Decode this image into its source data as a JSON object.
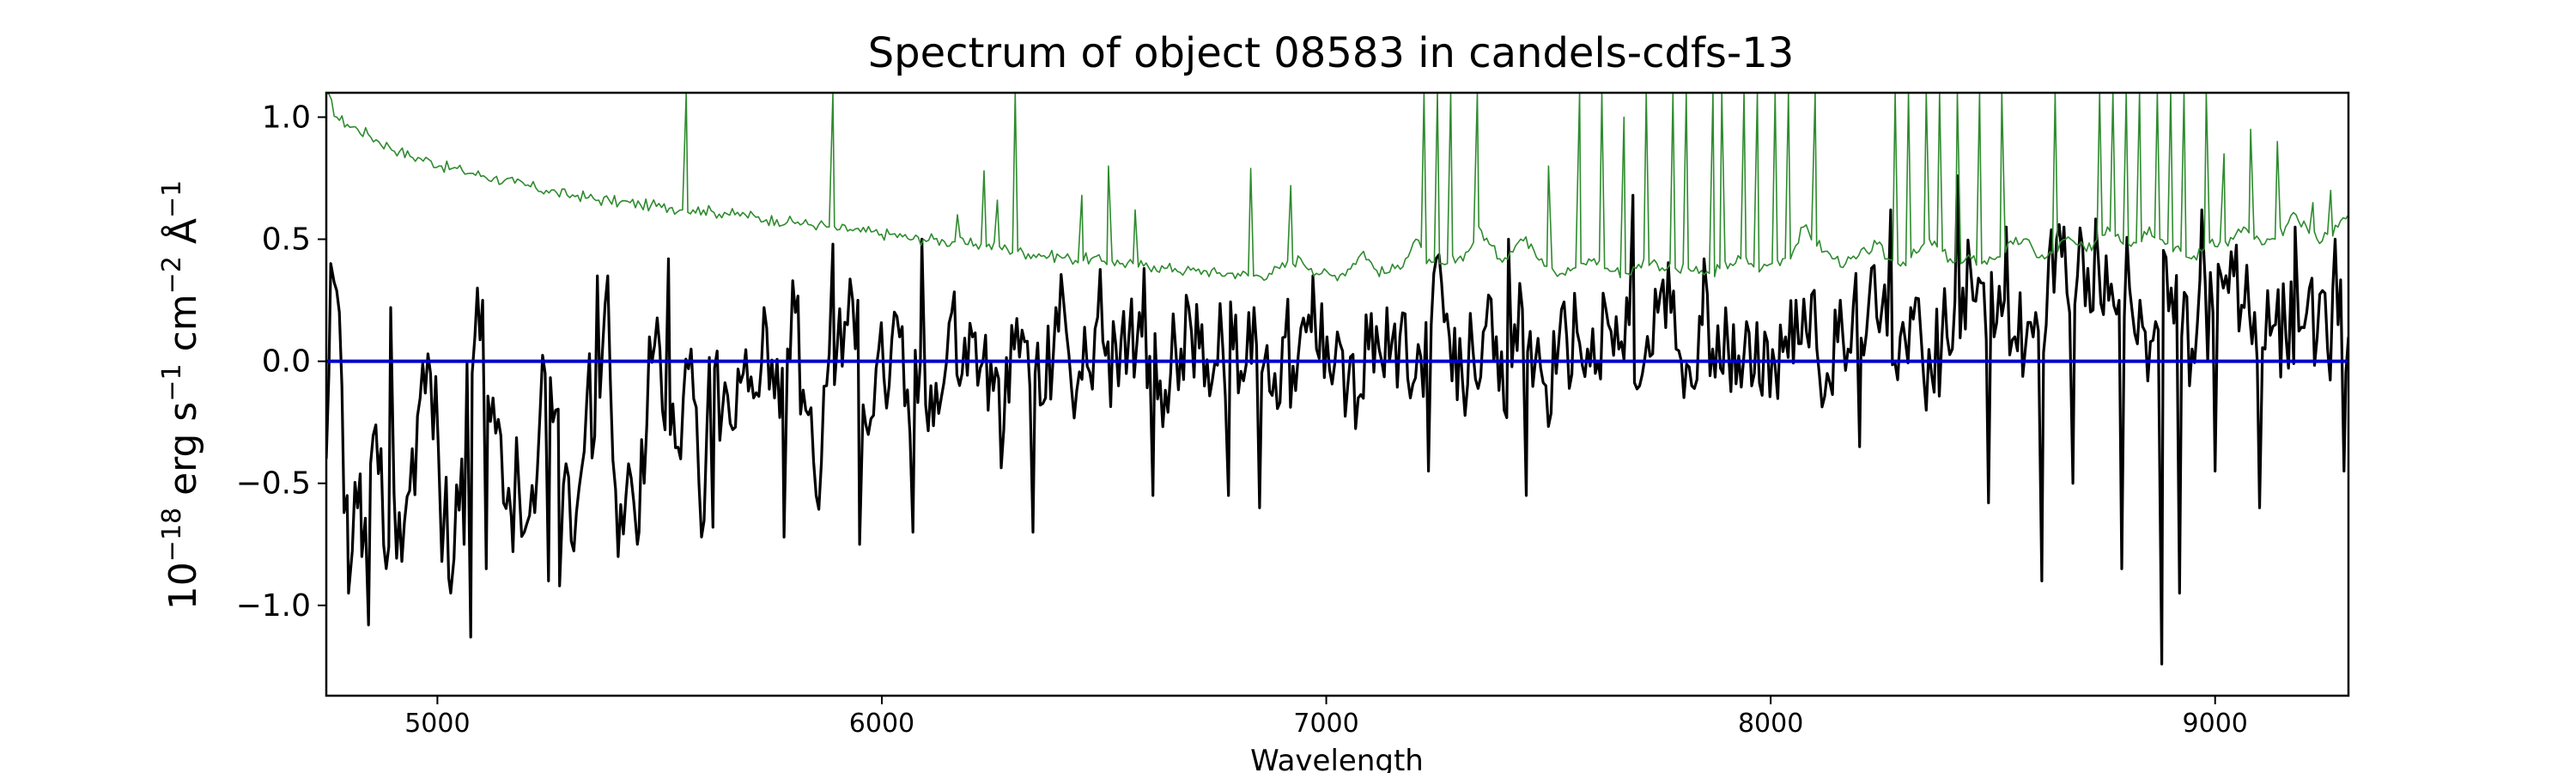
{
  "chart_data": {
    "type": "line",
    "title": "Spectrum of object 08583 in candels-cdfs-13",
    "xlabel": "Wavelength",
    "ylabel_parts": {
      "base": "10",
      "exp": "−18",
      "erg": " erg s",
      "s_exp": "−1",
      "cm": " cm",
      "cm_exp": "−2",
      "ang": " Å",
      "ang_exp": "−1"
    },
    "xlim": [
      4750,
      9300
    ],
    "ylim": [
      -1.37,
      1.1
    ],
    "xticks": [
      5000,
      6000,
      7000,
      8000,
      9000
    ],
    "yticks": [
      -1.0,
      -0.5,
      0.0,
      0.5,
      1.0
    ],
    "ytick_labels": [
      "−1.0",
      "−0.5",
      "0.0",
      "0.5",
      "1.0"
    ],
    "grid": false,
    "colors": {
      "flux": "#000000",
      "error": "#2e8b2e",
      "zero": "#0000cc"
    },
    "series": [
      {
        "role": "flux",
        "x_start": 4750,
        "x_end": 9300,
        "y": [
          -0.4,
          0.29,
          -0.55,
          -0.6,
          -0.55,
          -0.46,
          -0.76,
          -0.62,
          -0.53,
          -0.15,
          -0.05,
          -0.44,
          -0.85,
          -0.4,
          -0.05,
          0.25,
          -0.15,
          -0.58,
          -0.45,
          -0.7,
          -0.62,
          -0.05,
          -0.2,
          -0.42,
          -0.62,
          -0.15,
          -0.25,
          0.35,
          -0.8,
          -0.42,
          -0.7,
          0.1,
          0.05,
          -0.3,
          -0.4,
          0.05,
          -0.72,
          0.0,
          -0.2,
          -0.28,
          -0.05,
          -0.15,
          0.22,
          -0.15,
          0.08,
          0.2,
          -0.2,
          -0.55,
          -0.1,
          0.05,
          0.15,
          0.25,
          -0.3,
          0.05,
          -0.1,
          0.1,
          -0.3,
          0.0,
          -0.1,
          -0.15,
          0.2,
          -0.05,
          0.1,
          0.0,
          -0.12,
          -0.28,
          0.05,
          0.08,
          -0.05,
          -0.15,
          0.22,
          0.12,
          -0.12,
          -0.02,
          0.18,
          0.08,
          -0.1,
          0.1,
          0.2,
          0.02,
          -0.08,
          -0.05,
          0.05,
          0.12,
          0.15,
          -0.08,
          0.06,
          0.05,
          -0.08,
          0.22,
          0.0,
          -0.05,
          0.1,
          -0.12,
          0.12,
          0.05,
          0.1,
          0.12,
          -0.1,
          -0.15,
          0.05,
          0.05,
          0.0,
          0.1,
          -0.15,
          0.02,
          0.15,
          0.32,
          -0.08,
          -0.08,
          0.05,
          0.12,
          0.0,
          -0.2,
          0.15,
          0.18,
          0.0,
          -0.1,
          -0.05,
          0.1,
          0.12,
          0.05,
          0.0,
          0.15,
          0.05,
          0.15,
          -0.1,
          0.02,
          0.28,
          0.2,
          0.0,
          -0.1,
          0.15,
          0.05,
          -0.05,
          0.15,
          0.02,
          -0.05,
          0.12,
          -0.02,
          0.1,
          0.25,
          0.12,
          0.05,
          -0.05,
          0.08,
          0.05,
          0.2,
          0.25,
          0.12,
          0.18,
          0.1,
          0.22,
          0.1,
          -0.05,
          0.1,
          0.05,
          0.3,
          0.25,
          0.32,
          0.1,
          0.25,
          0.1,
          0.05,
          0.2,
          0.15,
          0.5,
          0.28,
          0.35,
          0.38,
          0.42,
          0.25,
          0.25,
          0.3,
          0.25,
          0.08,
          0.25,
          0.3,
          0.1,
          0.05,
          0.25,
          0.2,
          0.3,
          0.35,
          0.22,
          0.2,
          0.05,
          0.15,
          0.1,
          0.2,
          0.2,
          0.1,
          0.05,
          0.15,
          0.1
        ],
        "y_low_spikes": [
          [
            4790,
            -0.62
          ],
          [
            4800,
            -0.95
          ],
          [
            4830,
            -0.8
          ],
          [
            4845,
            -1.08
          ],
          [
            4920,
            -0.82
          ],
          [
            5010,
            -0.82
          ],
          [
            5030,
            -0.95
          ],
          [
            5060,
            -0.75
          ],
          [
            5075,
            -1.13
          ],
          [
            5110,
            -0.85
          ],
          [
            5170,
            -0.78
          ],
          [
            5250,
            -0.9
          ],
          [
            5275,
            -0.92
          ],
          [
            5450,
            -0.75
          ],
          [
            5620,
            -0.68
          ],
          [
            5780,
            -0.72
          ],
          [
            5950,
            -0.75
          ],
          [
            6070,
            -0.7
          ],
          [
            6340,
            -0.7
          ],
          [
            6610,
            -0.55
          ],
          [
            6780,
            -0.55
          ],
          [
            6850,
            -0.6
          ],
          [
            7230,
            -0.45
          ],
          [
            7450,
            -0.55
          ],
          [
            7850,
            -0.67
          ],
          [
            8200,
            -0.35
          ],
          [
            8350,
            -0.2
          ],
          [
            8490,
            -0.58
          ],
          [
            8610,
            -0.9
          ],
          [
            8680,
            -0.5
          ],
          [
            8790,
            -0.85
          ],
          [
            8880,
            -1.24
          ],
          [
            8920,
            -0.95
          ],
          [
            9000,
            -0.45
          ],
          [
            9100,
            -0.6
          ],
          [
            9290,
            -0.45
          ]
        ],
        "y_high_spikes": [
          [
            4760,
            0.4
          ],
          [
            4895,
            0.22
          ],
          [
            5360,
            0.35
          ],
          [
            5520,
            0.42
          ],
          [
            5890,
            0.48
          ],
          [
            6090,
            0.5
          ],
          [
            6590,
            0.38
          ],
          [
            6970,
            0.35
          ],
          [
            7410,
            0.5
          ],
          [
            7690,
            0.68
          ],
          [
            7850,
            0.42
          ],
          [
            8270,
            0.62
          ],
          [
            8420,
            0.76
          ],
          [
            8530,
            0.55
          ],
          [
            8660,
            0.55
          ],
          [
            8970,
            0.62
          ],
          [
            9180,
            0.55
          ],
          [
            9270,
            0.5
          ]
        ]
      },
      {
        "role": "error",
        "x_start": 4750,
        "x_end": 9300,
        "y": [
          1.1,
          1.0,
          0.97,
          0.95,
          0.93,
          0.9,
          0.88,
          0.86,
          0.84,
          0.83,
          0.82,
          0.8,
          0.79,
          0.78,
          0.77,
          0.76,
          0.75,
          0.74,
          0.73,
          0.72,
          0.71,
          0.7,
          0.69,
          0.68,
          0.68,
          0.67,
          0.66,
          0.66,
          0.65,
          0.65,
          0.64,
          0.64,
          0.63,
          0.63,
          0.62,
          0.62,
          0.62,
          0.61,
          0.61,
          0.6,
          0.6,
          0.59,
          0.58,
          0.58,
          0.57,
          0.57,
          0.56,
          0.56,
          0.55,
          0.54,
          0.54,
          0.53,
          0.53,
          0.52,
          0.52,
          0.51,
          0.5,
          0.5,
          0.5,
          0.49,
          0.49,
          0.48,
          0.48,
          0.47,
          0.47,
          0.46,
          0.45,
          0.44,
          0.44,
          0.43,
          0.43,
          0.42,
          0.42,
          0.42,
          0.41,
          0.41,
          0.4,
          0.4,
          0.39,
          0.39,
          0.38,
          0.38,
          0.37,
          0.37,
          0.37,
          0.36,
          0.36,
          0.36,
          0.35,
          0.35,
          0.36,
          0.38,
          0.4,
          0.42,
          0.38,
          0.36,
          0.35,
          0.36,
          0.4,
          0.45,
          0.38,
          0.36,
          0.38,
          0.42,
          0.5,
          0.4,
          0.38,
          0.4,
          0.42,
          0.45,
          0.55,
          0.48,
          0.42,
          0.45,
          0.5,
          0.48,
          0.42,
          0.38,
          0.36,
          0.38,
          0.4,
          0.42,
          0.38,
          0.37,
          0.36,
          0.38,
          0.42,
          0.4,
          0.38,
          0.37,
          0.38,
          0.36,
          0.36,
          0.38,
          0.4,
          0.42,
          0.4,
          0.38,
          0.4,
          0.42,
          0.45,
          0.55,
          0.5,
          0.45,
          0.42,
          0.4,
          0.42,
          0.45,
          0.48,
          0.42,
          0.4,
          0.42,
          0.45,
          0.5,
          0.45,
          0.42,
          0.4,
          0.42,
          0.4,
          0.42,
          0.45,
          0.48,
          0.5,
          0.45,
          0.42,
          0.45,
          0.5,
          0.48,
          0.45,
          0.5,
          0.55,
          0.52,
          0.48,
          0.5,
          0.55,
          0.5,
          0.48,
          0.45,
          0.42,
          0.45,
          0.5,
          0.48,
          0.5,
          0.55,
          0.5,
          0.48,
          0.5,
          0.55,
          0.6,
          0.55,
          0.5,
          0.52,
          0.55,
          0.6
        ],
        "y_high_spikes": [
          [
            5560,
            1.1
          ],
          [
            5890,
            1.1
          ],
          [
            6300,
            1.1
          ],
          [
            6170,
            0.6
          ],
          [
            6230,
            0.78
          ],
          [
            6260,
            0.66
          ],
          [
            6450,
            0.68
          ],
          [
            6510,
            0.8
          ],
          [
            6570,
            0.62
          ],
          [
            6830,
            0.79
          ],
          [
            6920,
            0.72
          ],
          [
            7220,
            1.1
          ],
          [
            7250,
            1.1
          ],
          [
            7280,
            1.1
          ],
          [
            7340,
            1.1
          ],
          [
            7500,
            0.8
          ],
          [
            7570,
            1.1
          ],
          [
            7620,
            1.1
          ],
          [
            7670,
            1.0
          ],
          [
            7720,
            1.1
          ],
          [
            7780,
            1.1
          ],
          [
            7810,
            1.1
          ],
          [
            7870,
            1.1
          ],
          [
            7890,
            1.1
          ],
          [
            7940,
            1.1
          ],
          [
            7970,
            1.1
          ],
          [
            8010,
            1.1
          ],
          [
            8040,
            1.1
          ],
          [
            8100,
            1.1
          ],
          [
            8280,
            1.1
          ],
          [
            8310,
            1.1
          ],
          [
            8350,
            1.1
          ],
          [
            8380,
            1.1
          ],
          [
            8420,
            1.1
          ],
          [
            8470,
            1.1
          ],
          [
            8520,
            1.1
          ],
          [
            8640,
            1.1
          ],
          [
            8740,
            1.1
          ],
          [
            8770,
            1.1
          ],
          [
            8800,
            1.1
          ],
          [
            8830,
            1.1
          ],
          [
            8870,
            1.1
          ],
          [
            8900,
            1.1
          ],
          [
            8930,
            1.1
          ],
          [
            8980,
            1.1
          ],
          [
            9020,
            0.85
          ],
          [
            9080,
            0.95
          ],
          [
            9140,
            0.9
          ],
          [
            9220,
            0.65
          ],
          [
            9260,
            0.7
          ]
        ]
      },
      {
        "role": "zero",
        "x": [
          4750,
          9300
        ],
        "y": [
          0.0,
          0.0
        ]
      }
    ]
  }
}
